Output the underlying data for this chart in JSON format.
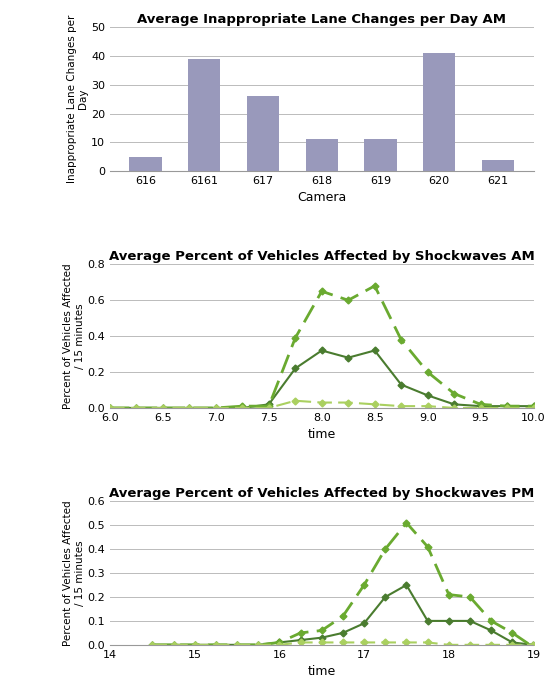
{
  "bar_chart": {
    "title": "Average Inappropriate Lane Changes per Day AM",
    "categories": [
      "616",
      "6161",
      "617",
      "618",
      "619",
      "620",
      "621"
    ],
    "values": [
      5,
      39,
      26,
      11,
      11,
      41,
      4
    ],
    "bar_color": "#9999bb",
    "xlabel": "Camera",
    "ylabel": "Inappropriate Lane Changes per\nDay",
    "ylim": [
      0,
      50
    ],
    "yticks": [
      0,
      10,
      20,
      30,
      40,
      50
    ]
  },
  "am_chart": {
    "title": "Average Percent of Vehicles Affected by Shockwaves AM",
    "xlabel": "time",
    "ylabel": "Percent of Vehicles Affected\n/ 15 minutes",
    "xlim": [
      6,
      10
    ],
    "ylim": [
      0,
      0.8
    ],
    "yticks": [
      0,
      0.2,
      0.4,
      0.6,
      0.8
    ],
    "xticks": [
      6,
      6.5,
      7,
      7.5,
      8,
      8.5,
      9,
      9.5,
      10
    ],
    "line1_x": [
      6,
      6.25,
      6.5,
      6.75,
      7,
      7.25,
      7.5,
      7.75,
      8,
      8.25,
      8.5,
      8.75,
      9,
      9.25,
      9.5,
      9.75,
      10
    ],
    "line1_y": [
      0,
      0,
      0,
      0,
      0,
      0,
      0.02,
      0.22,
      0.32,
      0.28,
      0.32,
      0.13,
      0.07,
      0.02,
      0.01,
      0.01,
      0.01
    ],
    "line1_color": "#4a7c2f",
    "line1_style": "solid",
    "line1_marker": "D",
    "line2_x": [
      6,
      6.25,
      6.5,
      6.75,
      7,
      7.25,
      7.5,
      7.75,
      8,
      8.25,
      8.5,
      8.75,
      9,
      9.25,
      9.5,
      9.75,
      10
    ],
    "line2_y": [
      0,
      0,
      0,
      0,
      0,
      0.01,
      0.01,
      0.39,
      0.65,
      0.6,
      0.68,
      0.38,
      0.2,
      0.08,
      0.02,
      0.01,
      0.01
    ],
    "line2_color": "#6aaa30",
    "line2_style": "dashed",
    "line2_marker": "D",
    "line3_x": [
      6,
      6.25,
      6.5,
      6.75,
      7,
      7.25,
      7.5,
      7.75,
      8,
      8.25,
      8.5,
      8.75,
      9,
      9.25,
      9.5,
      9.75,
      10
    ],
    "line3_y": [
      0,
      0,
      0,
      0,
      0,
      0,
      0,
      0.04,
      0.03,
      0.03,
      0.02,
      0.01,
      0.01,
      0,
      0,
      0,
      0
    ],
    "line3_color": "#aad060",
    "line3_style": "dashed",
    "line3_marker": "D"
  },
  "pm_chart": {
    "title": "Average Percent of Vehicles Affected by Shockwaves PM",
    "xlabel": "time",
    "ylabel": "Percent of Vehicles Affected\n/ 15 minutes",
    "xlim": [
      14,
      19
    ],
    "ylim": [
      0,
      0.6
    ],
    "yticks": [
      0,
      0.1,
      0.2,
      0.3,
      0.4,
      0.5,
      0.6
    ],
    "xticks": [
      14,
      15,
      16,
      17,
      18,
      19
    ],
    "line1_x": [
      14.5,
      14.75,
      15,
      15.25,
      15.5,
      15.75,
      16,
      16.25,
      16.5,
      16.75,
      17,
      17.25,
      17.5,
      17.75,
      18,
      18.25,
      18.5,
      18.75,
      19
    ],
    "line1_y": [
      0,
      0,
      0,
      0,
      0,
      0,
      0.01,
      0.02,
      0.03,
      0.05,
      0.09,
      0.2,
      0.25,
      0.1,
      0.1,
      0.1,
      0.06,
      0.01,
      0
    ],
    "line1_color": "#4a7c2f",
    "line1_style": "solid",
    "line1_marker": "D",
    "line2_x": [
      14.5,
      14.75,
      15,
      15.25,
      15.5,
      15.75,
      16,
      16.25,
      16.5,
      16.75,
      17,
      17.25,
      17.5,
      17.75,
      18,
      18.25,
      18.5,
      18.75,
      19
    ],
    "line2_y": [
      0,
      0,
      0,
      0,
      0,
      0,
      0.01,
      0.05,
      0.06,
      0.12,
      0.25,
      0.4,
      0.51,
      0.41,
      0.21,
      0.2,
      0.1,
      0.05,
      -0.01
    ],
    "line2_color": "#6aaa30",
    "line2_style": "dashed",
    "line2_marker": "D",
    "line3_x": [
      14.5,
      14.75,
      15,
      15.25,
      15.5,
      15.75,
      16,
      16.25,
      16.5,
      16.75,
      17,
      17.25,
      17.5,
      17.75,
      18,
      18.25,
      18.5,
      18.75,
      19
    ],
    "line3_y": [
      0,
      0,
      0,
      0,
      0,
      0,
      0,
      0.01,
      0.01,
      0.01,
      0.01,
      0.01,
      0.01,
      0.01,
      0,
      0,
      0,
      0,
      0
    ],
    "line3_color": "#aad060",
    "line3_style": "dashed",
    "line3_marker": "D"
  },
  "fig_width": 5.5,
  "fig_height": 6.86,
  "fig_dpi": 100,
  "background_color": "#ffffff"
}
